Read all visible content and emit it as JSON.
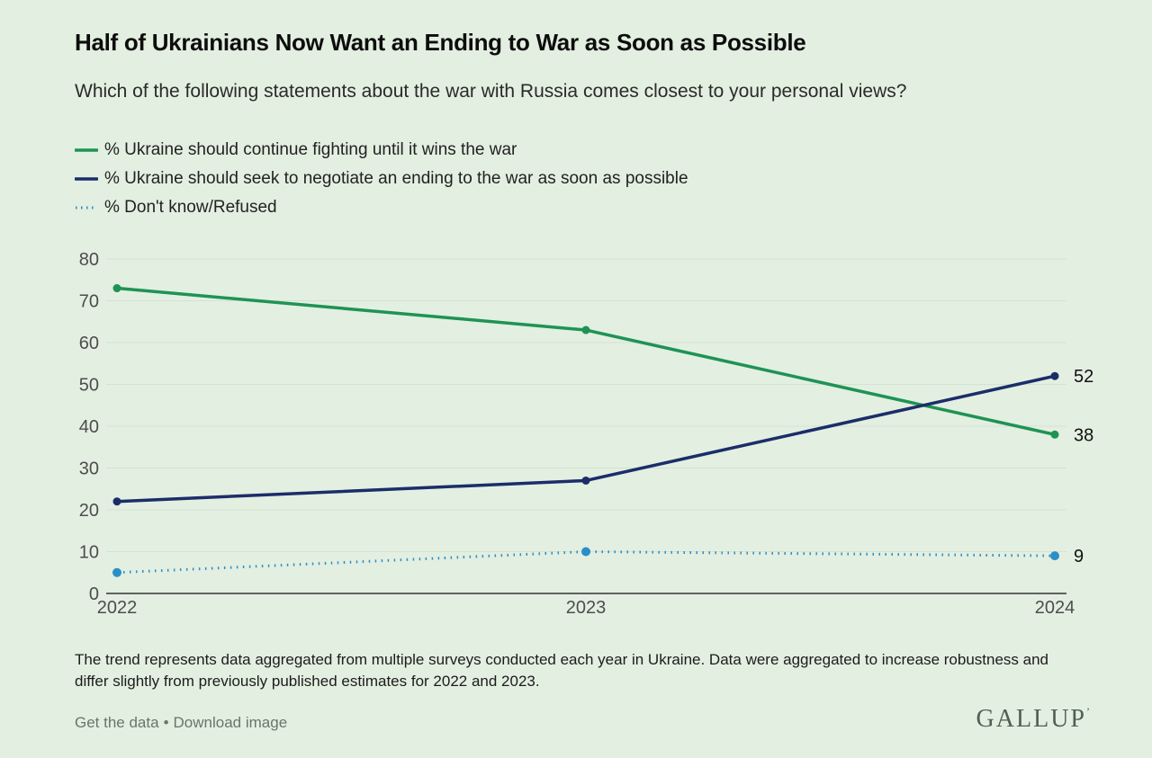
{
  "header": {
    "title": "Half of Ukrainians Now Want an Ending to War as Soon as Possible",
    "subtitle": "Which of the following statements about the war with Russia comes closest to your personal views?"
  },
  "colors": {
    "background": "#e3efe1",
    "gridline": "#d4e2d1",
    "axis_line": "#333333",
    "tick_text": "#4d4d4d",
    "fighting_green": "#1e9354",
    "negotiate_navy": "#1b2d69",
    "dontknow_blue": "#2a8fc7"
  },
  "chart_data": {
    "type": "line",
    "categories": [
      "2022",
      "2023",
      "2024"
    ],
    "series": [
      {
        "name": "% Ukraine should continue fighting until it wins the war",
        "values": [
          73,
          63,
          38
        ],
        "color": "#1e9354",
        "line_style": "solid",
        "end_label": "38"
      },
      {
        "name": "% Ukraine should seek to negotiate an ending to the war as soon as possible",
        "values": [
          22,
          27,
          52
        ],
        "color": "#1b2d69",
        "line_style": "solid",
        "end_label": "52"
      },
      {
        "name": "% Don't know/Refused",
        "values": [
          5,
          10,
          9
        ],
        "color": "#2a8fc7",
        "line_style": "dotted",
        "end_label": "9"
      }
    ],
    "title": "Half of Ukrainians Now Want an Ending to War as Soon as Possible",
    "xlabel": "",
    "ylabel": "",
    "ylim": [
      0,
      80
    ],
    "yticks": [
      0,
      10,
      20,
      30,
      40,
      50,
      60,
      70,
      80
    ],
    "grid": "horizontal",
    "legend_position": "top-left"
  },
  "footer": {
    "note": "The trend represents data aggregated from multiple surveys conducted each year in Ukraine. Data were aggregated to increase robustness and differ slightly from previously published estimates for 2022 and 2023.",
    "links": [
      {
        "label": "Get the data"
      },
      {
        "label": "Download image"
      }
    ],
    "link_separator": "•",
    "logo": "GALLUP",
    "logo_mark": "’"
  }
}
